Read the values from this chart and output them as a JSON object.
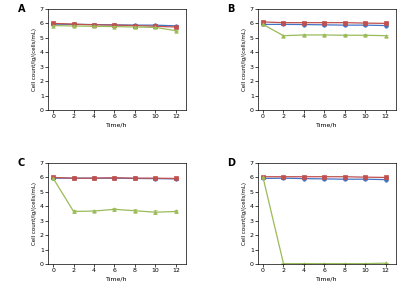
{
  "x": [
    0,
    2,
    4,
    6,
    8,
    10,
    12
  ],
  "panels": {
    "A": {
      "blue": {
        "y": [
          5.95,
          5.93,
          5.92,
          5.9,
          5.88,
          5.88,
          5.83
        ],
        "err": [
          0.05,
          0.05,
          0.05,
          0.05,
          0.05,
          0.05,
          0.05
        ]
      },
      "red": {
        "y": [
          6.0,
          5.95,
          5.9,
          5.88,
          5.85,
          5.8,
          5.75
        ],
        "err": [
          0.05,
          0.05,
          0.05,
          0.05,
          0.05,
          0.08,
          0.08
        ]
      },
      "olive": {
        "y": [
          5.85,
          5.82,
          5.8,
          5.78,
          5.75,
          5.72,
          5.5
        ],
        "err": [
          0.05,
          0.05,
          0.05,
          0.05,
          0.05,
          0.05,
          0.05
        ]
      }
    },
    "B": {
      "blue": {
        "y": [
          5.93,
          5.93,
          5.92,
          5.9,
          5.88,
          5.88,
          5.85
        ],
        "err": [
          0.05,
          0.05,
          0.05,
          0.05,
          0.05,
          0.05,
          0.05
        ]
      },
      "red": {
        "y": [
          6.1,
          6.05,
          6.05,
          6.05,
          6.05,
          6.02,
          6.0
        ],
        "err": [
          0.05,
          0.05,
          0.05,
          0.05,
          0.05,
          0.05,
          0.05
        ]
      },
      "olive": {
        "y": [
          5.93,
          5.15,
          5.2,
          5.2,
          5.18,
          5.18,
          5.15
        ],
        "err": [
          0.05,
          0.08,
          0.08,
          0.08,
          0.08,
          0.08,
          0.08
        ]
      }
    },
    "C": {
      "blue": {
        "y": [
          5.95,
          5.95,
          5.95,
          5.95,
          5.93,
          5.92,
          5.9
        ],
        "err": [
          0.05,
          0.05,
          0.05,
          0.05,
          0.05,
          0.05,
          0.05
        ]
      },
      "red": {
        "y": [
          6.0,
          5.95,
          5.95,
          5.98,
          5.95,
          5.95,
          5.93
        ],
        "err": [
          0.05,
          0.05,
          0.05,
          0.05,
          0.05,
          0.05,
          0.05
        ]
      },
      "olive": {
        "y": [
          5.95,
          3.65,
          3.68,
          3.8,
          3.7,
          3.6,
          3.65
        ],
        "err": [
          0.05,
          0.1,
          0.1,
          0.1,
          0.1,
          0.12,
          0.1
        ]
      }
    },
    "D": {
      "blue": {
        "y": [
          5.93,
          5.95,
          5.92,
          5.9,
          5.88,
          5.88,
          5.85
        ],
        "err": [
          0.05,
          0.05,
          0.05,
          0.05,
          0.05,
          0.05,
          0.05
        ]
      },
      "red": {
        "y": [
          6.05,
          6.05,
          6.05,
          6.05,
          6.05,
          6.02,
          6.0
        ],
        "err": [
          0.05,
          0.05,
          0.05,
          0.05,
          0.05,
          0.05,
          0.05
        ]
      },
      "olive": {
        "y": [
          6.0,
          0.05,
          0.05,
          0.05,
          0.05,
          0.05,
          0.08
        ],
        "err": [
          0.05,
          0.02,
          0.02,
          0.02,
          0.02,
          0.02,
          0.02
        ]
      }
    }
  },
  "colors": {
    "blue": "#4472C4",
    "red": "#C0504D",
    "olive": "#9BBB59"
  },
  "markers": {
    "blue": "o",
    "red": "s",
    "olive": "^"
  },
  "ylim": [
    0,
    7
  ],
  "yticks": [
    0,
    1,
    2,
    3,
    4,
    5,
    6,
    7
  ],
  "xticks": [
    0,
    2,
    4,
    6,
    8,
    10,
    12
  ],
  "xlabel": "Time/h",
  "ylabel": "Cell count/lg/(cells/mL)",
  "background": "#ffffff",
  "panel_labels": [
    "A",
    "B",
    "C",
    "D"
  ]
}
